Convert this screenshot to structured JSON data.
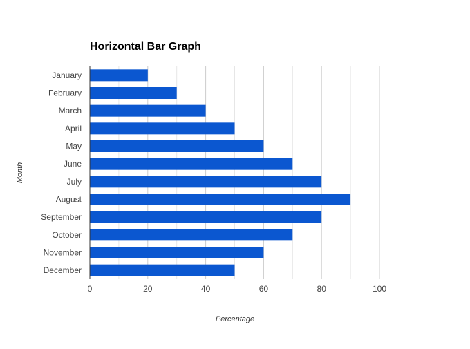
{
  "chart_data": {
    "type": "bar",
    "orientation": "horizontal",
    "title": "Horizontal Bar Graph",
    "xlabel": "Percentage",
    "ylabel": "Month",
    "categories": [
      "January",
      "February",
      "March",
      "April",
      "May",
      "June",
      "July",
      "August",
      "September",
      "October",
      "November",
      "December"
    ],
    "values": [
      20,
      30,
      40,
      50,
      60,
      70,
      80,
      90,
      80,
      70,
      60,
      50
    ],
    "xlim": [
      0,
      100
    ],
    "xticks": [
      "0",
      "20",
      "40",
      "60",
      "80",
      "100"
    ],
    "grid": true,
    "legend": "none",
    "colors": {
      "bar": "#0b57d0",
      "grid": "#cccccc",
      "axis": "#333333"
    }
  }
}
